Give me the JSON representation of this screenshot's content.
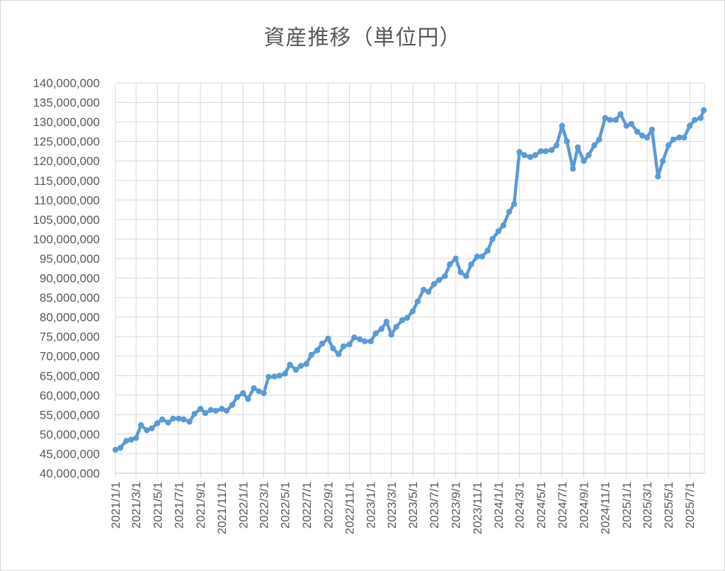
{
  "chart_data": {
    "type": "line",
    "title": "資産推移（単位円）",
    "xlabel": "",
    "ylabel": "",
    "ylim": [
      40000000,
      140000000
    ],
    "yticks": [
      "40,000,000",
      "45,000,000",
      "50,000,000",
      "55,000,000",
      "60,000,000",
      "65,000,000",
      "70,000,000",
      "75,000,000",
      "80,000,000",
      "85,000,000",
      "90,000,000",
      "95,000,000",
      "100,000,000",
      "105,000,000",
      "110,000,000",
      "115,000,000",
      "120,000,000",
      "125,000,000",
      "130,000,000",
      "135,000,000",
      "140,000,000"
    ],
    "xticks": [
      "2021/1/1",
      "2021/3/1",
      "2021/5/1",
      "2021/7/1",
      "2021/9/1",
      "2021/11/1",
      "2022/1/1",
      "2022/3/1",
      "2022/5/1",
      "2022/7/1",
      "2022/9/1",
      "2022/11/1",
      "2023/1/1",
      "2023/3/1",
      "2023/5/1",
      "2023/7/1",
      "2023/9/1",
      "2023/11/1",
      "2024/1/1",
      "2024/3/1",
      "2024/5/1",
      "2024/7/1",
      "2024/9/1",
      "2024/11/1",
      "2025/1/1",
      "2025/3/1",
      "2025/5/1",
      "2025/7/1"
    ],
    "grid": true,
    "legend": "none",
    "line_color": "#5b9bd5",
    "x": [
      "2021/1/1",
      "2021/1/15",
      "2021/2/1",
      "2021/2/15",
      "2021/3/1",
      "2021/3/15",
      "2021/4/1",
      "2021/4/15",
      "2021/5/1",
      "2021/5/15",
      "2021/6/1",
      "2021/6/15",
      "2021/7/1",
      "2021/7/15",
      "2021/8/1",
      "2021/8/15",
      "2021/9/1",
      "2021/9/15",
      "2021/10/1",
      "2021/10/15",
      "2021/11/1",
      "2021/11/15",
      "2021/12/1",
      "2021/12/15",
      "2022/1/1",
      "2022/1/15",
      "2022/2/1",
      "2022/2/15",
      "2022/3/1",
      "2022/3/15",
      "2022/4/1",
      "2022/4/15",
      "2022/5/1",
      "2022/5/15",
      "2022/6/1",
      "2022/6/15",
      "2022/7/1",
      "2022/7/15",
      "2022/8/1",
      "2022/8/15",
      "2022/9/1",
      "2022/9/15",
      "2022/10/1",
      "2022/10/15",
      "2022/11/1",
      "2022/11/15",
      "2022/12/1",
      "2022/12/15",
      "2023/1/1",
      "2023/1/15",
      "2023/2/1",
      "2023/2/15",
      "2023/3/1",
      "2023/3/15",
      "2023/4/1",
      "2023/4/15",
      "2023/5/1",
      "2023/5/15",
      "2023/6/1",
      "2023/6/15",
      "2023/7/1",
      "2023/7/15",
      "2023/8/1",
      "2023/8/15",
      "2023/9/1",
      "2023/9/15",
      "2023/10/1",
      "2023/10/15",
      "2023/11/1",
      "2023/11/15",
      "2023/12/1",
      "2023/12/15",
      "2024/1/1",
      "2024/1/15",
      "2024/2/1",
      "2024/2/15",
      "2024/3/1",
      "2024/3/15",
      "2024/4/1",
      "2024/4/15",
      "2024/5/1",
      "2024/5/15",
      "2024/6/1",
      "2024/6/15",
      "2024/7/1",
      "2024/7/15",
      "2024/8/1",
      "2024/8/15",
      "2024/9/1",
      "2024/9/15",
      "2024/10/1",
      "2024/10/15",
      "2024/11/1",
      "2024/11/15",
      "2024/12/1",
      "2024/12/15",
      "2025/1/1",
      "2025/1/15",
      "2025/2/1",
      "2025/2/15",
      "2025/3/1",
      "2025/3/15",
      "2025/4/1",
      "2025/4/15",
      "2025/5/1",
      "2025/5/15",
      "2025/6/1",
      "2025/6/15",
      "2025/7/1",
      "2025/7/15",
      "2025/8/1",
      "2025/8/10"
    ],
    "values": [
      46000000,
      46500000,
      48300000,
      48600000,
      49000000,
      52300000,
      51000000,
      51500000,
      52800000,
      53800000,
      53000000,
      54000000,
      54000000,
      53800000,
      53200000,
      55200000,
      56500000,
      55400000,
      56200000,
      56000000,
      56500000,
      56000000,
      57500000,
      59500000,
      60500000,
      59000000,
      61800000,
      61000000,
      60500000,
      64700000,
      64800000,
      65000000,
      65500000,
      67800000,
      66500000,
      67500000,
      68000000,
      70300000,
      71500000,
      73200000,
      74500000,
      72000000,
      70500000,
      72500000,
      73000000,
      74800000,
      74300000,
      73800000,
      73800000,
      75800000,
      77000000,
      78800000,
      75500000,
      77500000,
      79200000,
      79800000,
      81500000,
      84000000,
      87000000,
      86500000,
      88500000,
      89500000,
      90500000,
      93500000,
      95000000,
      91500000,
      90500000,
      93500000,
      95500000,
      95500000,
      97000000,
      100000000,
      102000000,
      103500000,
      107000000,
      109000000,
      122300000,
      121500000,
      121000000,
      121500000,
      122500000,
      122500000,
      122800000,
      124000000,
      129000000,
      125000000,
      118000000,
      123500000,
      120000000,
      121500000,
      124000000,
      125500000,
      131000000,
      130500000,
      130500000,
      132000000,
      129000000,
      129500000,
      127500000,
      126500000,
      126000000,
      128000000,
      116000000,
      120000000,
      124000000,
      125500000,
      126000000,
      126000000,
      129000000,
      130500000,
      131000000,
      133000000
    ]
  }
}
